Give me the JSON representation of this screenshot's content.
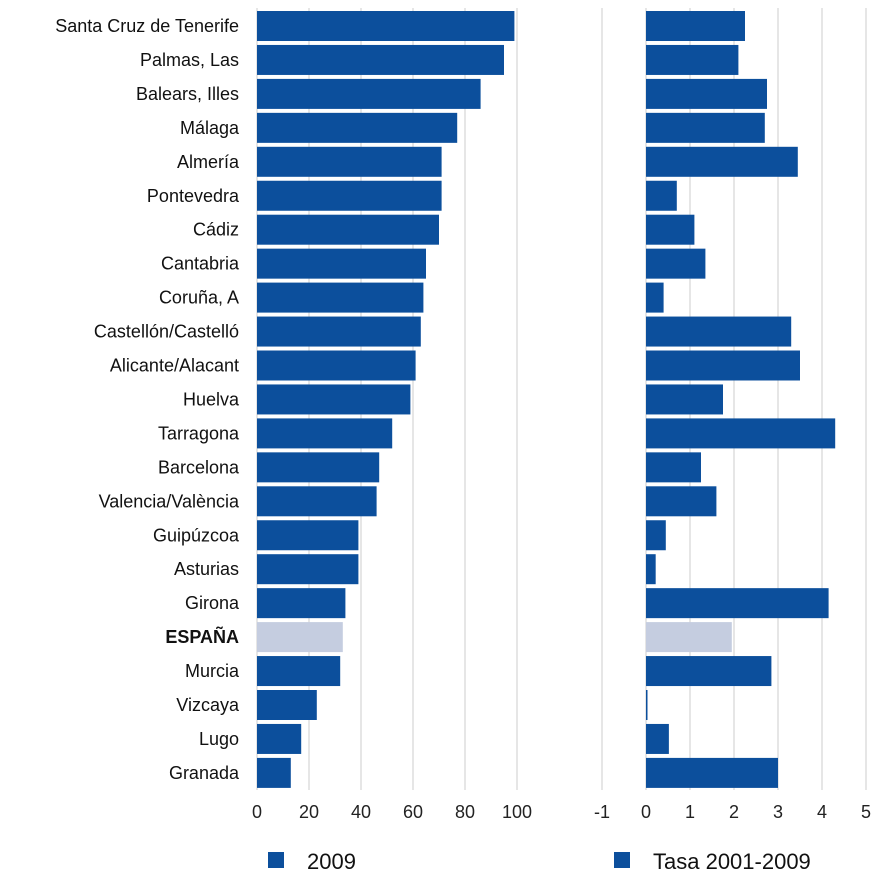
{
  "chart_data": [
    {
      "type": "bar",
      "orientation": "horizontal",
      "categories": [
        "Santa Cruz de Tenerife",
        "Palmas, Las",
        "Balears, Illes",
        "Málaga",
        "Almería",
        "Pontevedra",
        "Cádiz",
        "Cantabria",
        "Coruña, A",
        "Castellón/Castelló",
        "Alicante/Alacant",
        "Huelva",
        "Tarragona",
        "Barcelona",
        "Valencia/València",
        "Guipúzcoa",
        "Asturias",
        "Girona",
        "ESPAÑA",
        "Murcia",
        "Vizcaya",
        "Lugo",
        "Granada"
      ],
      "series": [
        {
          "name": "2009",
          "values": [
            99,
            95,
            86,
            77,
            71,
            71,
            70,
            65,
            64,
            63,
            61,
            59,
            52,
            47,
            46,
            39,
            39,
            34,
            33,
            32,
            23,
            17,
            13
          ]
        }
      ],
      "xlim": [
        0,
        100
      ],
      "xticks": [
        0,
        20,
        40,
        60,
        80,
        100
      ],
      "xlabel": "",
      "ylabel": "",
      "title": "",
      "grid": true,
      "highlight_category": "ESPAÑA",
      "colors": {
        "bar": "#0c4f9c",
        "highlight": "#c5cde0",
        "grid": "#d6d6d6"
      }
    },
    {
      "type": "bar",
      "orientation": "horizontal",
      "categories": [
        "Santa Cruz de Tenerife",
        "Palmas, Las",
        "Balears, Illes",
        "Málaga",
        "Almería",
        "Pontevedra",
        "Cádiz",
        "Cantabria",
        "Coruña, A",
        "Castellón/Castelló",
        "Alicante/Alacant",
        "Huelva",
        "Tarragona",
        "Barcelona",
        "Valencia/València",
        "Guipúzcoa",
        "Asturias",
        "Girona",
        "ESPAÑA",
        "Murcia",
        "Vizcaya",
        "Lugo",
        "Granada"
      ],
      "series": [
        {
          "name": "Tasa 2001-2009",
          "values": [
            2.25,
            2.1,
            2.75,
            2.7,
            3.45,
            0.7,
            1.1,
            1.35,
            0.4,
            3.3,
            3.5,
            1.75,
            4.3,
            1.25,
            1.6,
            0.45,
            0.22,
            4.15,
            1.95,
            2.85,
            0.02,
            0.52,
            3.0
          ]
        }
      ],
      "xlim": [
        -1,
        5
      ],
      "xticks": [
        -1,
        0,
        1,
        2,
        3,
        4,
        5
      ],
      "xlabel": "",
      "ylabel": "",
      "title": "",
      "grid": true,
      "highlight_category": "ESPAÑA",
      "colors": {
        "bar": "#0c4f9c",
        "highlight": "#c5cde0",
        "grid": "#d6d6d6"
      }
    }
  ],
  "legend": {
    "placement": "bottom",
    "items": [
      {
        "label": "2009",
        "color": "#0c4f9c"
      },
      {
        "label": "Tasa 2001-2009",
        "color": "#0c4f9c"
      }
    ]
  }
}
